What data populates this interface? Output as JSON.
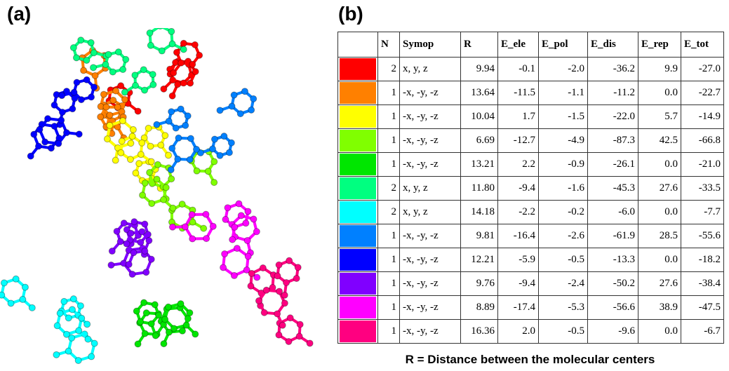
{
  "panel_a": {
    "label": "(a)"
  },
  "panel_b": {
    "label": "(b)",
    "table": {
      "header": [
        "N",
        "Symop",
        "R",
        "E_ele",
        "E_pol",
        "E_dis",
        "E_rep",
        "E_tot"
      ],
      "rows": [
        {
          "color": "#ff0000",
          "cells": [
            "2",
            "x, y, z",
            "9.94",
            "-0.1",
            "-2.0",
            "-36.2",
            "9.9",
            "-27.0"
          ]
        },
        {
          "color": "#ff8000",
          "cells": [
            "1",
            "-x, -y, -z",
            "13.64",
            "-11.5",
            "-1.1",
            "-11.2",
            "0.0",
            "-22.7"
          ]
        },
        {
          "color": "#ffff00",
          "cells": [
            "1",
            "-x, -y, -z",
            "10.04",
            "1.7",
            "-1.5",
            "-22.0",
            "5.7",
            "-14.9"
          ]
        },
        {
          "color": "#80ff00",
          "cells": [
            "1",
            "-x, -y, -z",
            "6.69",
            "-12.7",
            "-4.9",
            "-87.3",
            "42.5",
            "-66.8"
          ]
        },
        {
          "color": "#00e600",
          "cells": [
            "1",
            "-x, -y, -z",
            "13.21",
            "2.2",
            "-0.9",
            "-26.1",
            "0.0",
            "-21.0"
          ]
        },
        {
          "color": "#00ff80",
          "cells": [
            "2",
            "x, y, z",
            "11.80",
            "-9.4",
            "-1.6",
            "-45.3",
            "27.6",
            "-33.5"
          ]
        },
        {
          "color": "#00ffff",
          "cells": [
            "2",
            "x, y, z",
            "14.18",
            "-2.2",
            "-0.2",
            "-6.0",
            "0.0",
            "-7.7"
          ]
        },
        {
          "color": "#0080ff",
          "cells": [
            "1",
            "-x, -y, -z",
            "9.81",
            "-16.4",
            "-2.6",
            "-61.9",
            "28.5",
            "-55.6"
          ]
        },
        {
          "color": "#0000ff",
          "cells": [
            "1",
            "-x, -y, -z",
            "12.21",
            "-5.9",
            "-0.5",
            "-13.3",
            "0.0",
            "-18.2"
          ]
        },
        {
          "color": "#8000ff",
          "cells": [
            "1",
            "-x, -y, -z",
            "9.76",
            "-9.4",
            "-2.4",
            "-50.2",
            "27.6",
            "-38.4"
          ]
        },
        {
          "color": "#ff00ff",
          "cells": [
            "1",
            "-x, -y, -z",
            "8.89",
            "-17.4",
            "-5.3",
            "-56.6",
            "38.9",
            "-47.5"
          ]
        },
        {
          "color": "#ff0080",
          "cells": [
            "1",
            "-x, -y, -z",
            "16.36",
            "2.0",
            "-0.5",
            "-9.6",
            "0.0",
            "-6.7"
          ]
        }
      ]
    },
    "caption": "R = Distance between the molecular centers"
  }
}
